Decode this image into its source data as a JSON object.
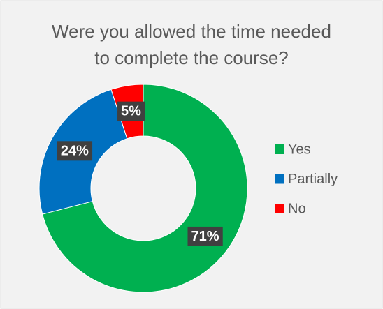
{
  "chart_data": {
    "type": "donut",
    "title": "Were you allowed the time needed to complete the course?",
    "categories": [
      "Yes",
      "Partially",
      "No"
    ],
    "values": [
      71,
      24,
      5
    ],
    "value_labels": [
      "71%",
      "24%",
      "5%"
    ],
    "colors": [
      "#00b050",
      "#0070c0",
      "#ff0000"
    ],
    "legend": "right"
  }
}
